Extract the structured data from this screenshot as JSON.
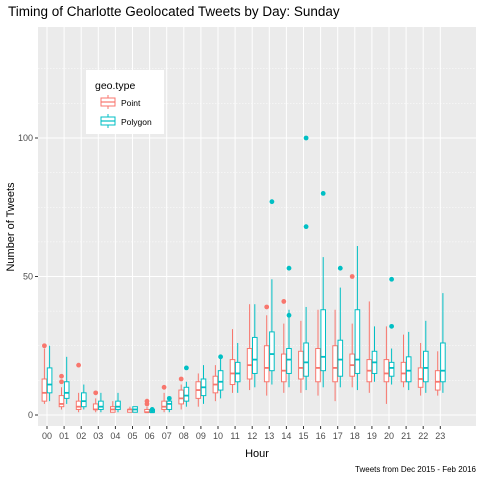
{
  "chart_data": {
    "type": "boxplot",
    "title": "Timing of Charlotte Geolocated Tweets by Day: Sunday",
    "xlabel": "Hour",
    "ylabel": "Number of Tweets",
    "caption": "Tweets from Dec 2015 - Feb 2016",
    "ylim": [
      -5,
      110
    ],
    "y_ticks": [
      0,
      50,
      100
    ],
    "categories": [
      "00",
      "01",
      "02",
      "03",
      "04",
      "05",
      "06",
      "07",
      "08",
      "09",
      "10",
      "11",
      "12",
      "13",
      "14",
      "15",
      "16",
      "17",
      "18",
      "19",
      "20",
      "21",
      "22",
      "23"
    ],
    "grid": true,
    "legend": {
      "title": "geo.type",
      "placement": "top-left",
      "entries": [
        "Point",
        "Polygon"
      ]
    },
    "series": [
      {
        "name": "Point",
        "color": "#F8766D",
        "boxes": [
          {
            "min": 4,
            "q1": 5,
            "median": 8,
            "q3": 13,
            "max": 24,
            "outliers": [
              25
            ]
          },
          {
            "min": 2,
            "q1": 3,
            "median": 4,
            "q3": 7,
            "max": 10,
            "outliers": [
              12,
              14
            ]
          },
          {
            "min": 1,
            "q1": 2,
            "median": 3,
            "q3": 5,
            "max": 8,
            "outliers": [
              18
            ]
          },
          {
            "min": 1,
            "q1": 2,
            "median": 2,
            "q3": 4,
            "max": 6,
            "outliers": [
              8
            ]
          },
          {
            "min": 1,
            "q1": 1,
            "median": 2,
            "q3": 3,
            "max": 5,
            "outliers": []
          },
          {
            "min": 1,
            "q1": 1,
            "median": 2,
            "q3": 2,
            "max": 3,
            "outliers": []
          },
          {
            "min": 1,
            "q1": 1,
            "median": 1,
            "q3": 2,
            "max": 3,
            "outliers": [
              4,
              5
            ]
          },
          {
            "min": 1,
            "q1": 2,
            "median": 3,
            "q3": 5,
            "max": 8,
            "outliers": [
              10
            ]
          },
          {
            "min": 2,
            "q1": 4,
            "median": 6,
            "q3": 9,
            "max": 11,
            "outliers": [
              13
            ]
          },
          {
            "min": 3,
            "q1": 6,
            "median": 9,
            "q3": 12,
            "max": 15,
            "outliers": []
          },
          {
            "min": 5,
            "q1": 8,
            "median": 11,
            "q3": 14,
            "max": 18,
            "outliers": []
          },
          {
            "min": 8,
            "q1": 11,
            "median": 15,
            "q3": 20,
            "max": 31,
            "outliers": []
          },
          {
            "min": 9,
            "q1": 13,
            "median": 18,
            "q3": 24,
            "max": 40,
            "outliers": []
          },
          {
            "min": 7,
            "q1": 12,
            "median": 17,
            "q3": 25,
            "max": 36,
            "outliers": [
              39
            ]
          },
          {
            "min": 8,
            "q1": 12,
            "median": 16,
            "q3": 22,
            "max": 33,
            "outliers": [
              41
            ]
          },
          {
            "min": 8,
            "q1": 13,
            "median": 17,
            "q3": 23,
            "max": 34,
            "outliers": []
          },
          {
            "min": 7,
            "q1": 12,
            "median": 17,
            "q3": 24,
            "max": 38,
            "outliers": []
          },
          {
            "min": 5,
            "q1": 12,
            "median": 17,
            "q3": 25,
            "max": 38,
            "outliers": []
          },
          {
            "min": 10,
            "q1": 14,
            "median": 18,
            "q3": 22,
            "max": 33,
            "outliers": [
              50
            ]
          },
          {
            "min": 8,
            "q1": 12,
            "median": 16,
            "q3": 20,
            "max": 41,
            "outliers": []
          },
          {
            "min": 4,
            "q1": 12,
            "median": 15,
            "q3": 20,
            "max": 32,
            "outliers": []
          },
          {
            "min": 10,
            "q1": 12,
            "median": 15,
            "q3": 19,
            "max": 29,
            "outliers": []
          },
          {
            "min": 7,
            "q1": 10,
            "median": 13,
            "q3": 17,
            "max": 26,
            "outliers": []
          },
          {
            "min": 7,
            "q1": 9,
            "median": 12,
            "q3": 16,
            "max": 23,
            "outliers": []
          }
        ]
      },
      {
        "name": "Polygon",
        "color": "#00BFC4",
        "boxes": [
          {
            "min": 5,
            "q1": 8,
            "median": 11,
            "q3": 17,
            "max": 25,
            "outliers": []
          },
          {
            "min": 4,
            "q1": 6,
            "median": 8,
            "q3": 12,
            "max": 21,
            "outliers": []
          },
          {
            "min": 2,
            "q1": 3,
            "median": 5,
            "q3": 8,
            "max": 11,
            "outliers": []
          },
          {
            "min": 1,
            "q1": 2,
            "median": 3,
            "q3": 5,
            "max": 8,
            "outliers": []
          },
          {
            "min": 1,
            "q1": 2,
            "median": 3,
            "q3": 5,
            "max": 8,
            "outliers": []
          },
          {
            "min": 1,
            "q1": 1,
            "median": 2,
            "q3": 3,
            "max": 3,
            "outliers": []
          },
          {
            "min": 1,
            "q1": 1,
            "median": 1,
            "q3": 2,
            "max": 2,
            "outliers": [
              2
            ]
          },
          {
            "min": 1,
            "q1": 2,
            "median": 4,
            "q3": 5,
            "max": 6,
            "outliers": [
              6
            ]
          },
          {
            "min": 3,
            "q1": 5,
            "median": 7,
            "q3": 10,
            "max": 12,
            "outliers": [
              17
            ]
          },
          {
            "min": 4,
            "q1": 7,
            "median": 10,
            "q3": 13,
            "max": 18,
            "outliers": []
          },
          {
            "min": 6,
            "q1": 9,
            "median": 12,
            "q3": 16,
            "max": 21,
            "outliers": [
              21
            ]
          },
          {
            "min": 8,
            "q1": 12,
            "median": 15,
            "q3": 19,
            "max": 26,
            "outliers": []
          },
          {
            "min": 10,
            "q1": 15,
            "median": 20,
            "q3": 28,
            "max": 40,
            "outliers": []
          },
          {
            "min": 11,
            "q1": 16,
            "median": 22,
            "q3": 30,
            "max": 49,
            "outliers": [
              77
            ]
          },
          {
            "min": 10,
            "q1": 15,
            "median": 20,
            "q3": 24,
            "max": 38,
            "outliers": [
              53,
              36
            ]
          },
          {
            "min": 9,
            "q1": 14,
            "median": 19,
            "q3": 26,
            "max": 39,
            "outliers": [
              100,
              68
            ]
          },
          {
            "min": 10,
            "q1": 16,
            "median": 21,
            "q3": 38,
            "max": 57,
            "outliers": [
              80
            ]
          },
          {
            "min": 10,
            "q1": 14,
            "median": 20,
            "q3": 27,
            "max": 46,
            "outliers": [
              53
            ]
          },
          {
            "min": 9,
            "q1": 15,
            "median": 20,
            "q3": 38,
            "max": 61,
            "outliers": []
          },
          {
            "min": 12,
            "q1": 15,
            "median": 19,
            "q3": 23,
            "max": 32,
            "outliers": []
          },
          {
            "min": 11,
            "q1": 14,
            "median": 17,
            "q3": 19,
            "max": 24,
            "outliers": [
              49,
              32
            ]
          },
          {
            "min": 9,
            "q1": 12,
            "median": 16,
            "q3": 21,
            "max": 30,
            "outliers": []
          },
          {
            "min": 8,
            "q1": 12,
            "median": 17,
            "q3": 23,
            "max": 34,
            "outliers": []
          },
          {
            "min": 8,
            "q1": 12,
            "median": 16,
            "q3": 26,
            "max": 44,
            "outliers": []
          }
        ]
      }
    ]
  }
}
